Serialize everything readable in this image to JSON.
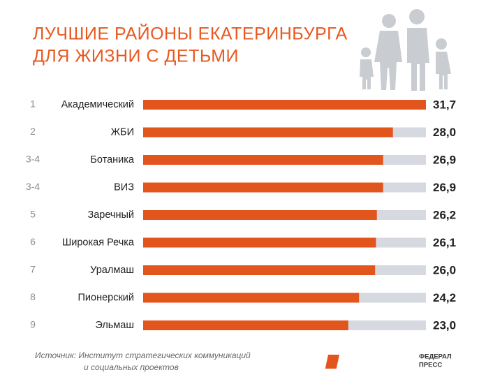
{
  "chart_data": {
    "type": "bar",
    "title_lines": [
      "ЛУЧШИЕ РАЙОНЫ ЕКАТЕРИНБУРГА",
      "ДЛЯ ЖИЗНИ С ДЕТЬМИ"
    ],
    "ranks": [
      "1",
      "2",
      "3-4",
      "3-4",
      "5",
      "6",
      "7",
      "8",
      "9"
    ],
    "categories": [
      "Академический",
      "ЖБИ",
      "Ботаника",
      "ВИЗ",
      "Заречный",
      "Широкая Речка",
      "Уралмаш",
      "Пионерский",
      "Эльмаш"
    ],
    "values": [
      31.7,
      28.0,
      26.9,
      26.9,
      26.2,
      26.1,
      26.0,
      24.2,
      23.0
    ],
    "value_labels": [
      "31,7",
      "28,0",
      "26,9",
      "26,9",
      "26,2",
      "26,1",
      "26,0",
      "24,2",
      "23,0"
    ],
    "xlim": [
      0,
      31.7
    ],
    "color": "#e2561e",
    "source_lines": [
      "Источник: Институт стратегических коммуникаций",
      "и социальных проектов"
    ],
    "logo_lines": [
      "ФЕДЕРАЛ",
      "ПРЕСС"
    ]
  }
}
